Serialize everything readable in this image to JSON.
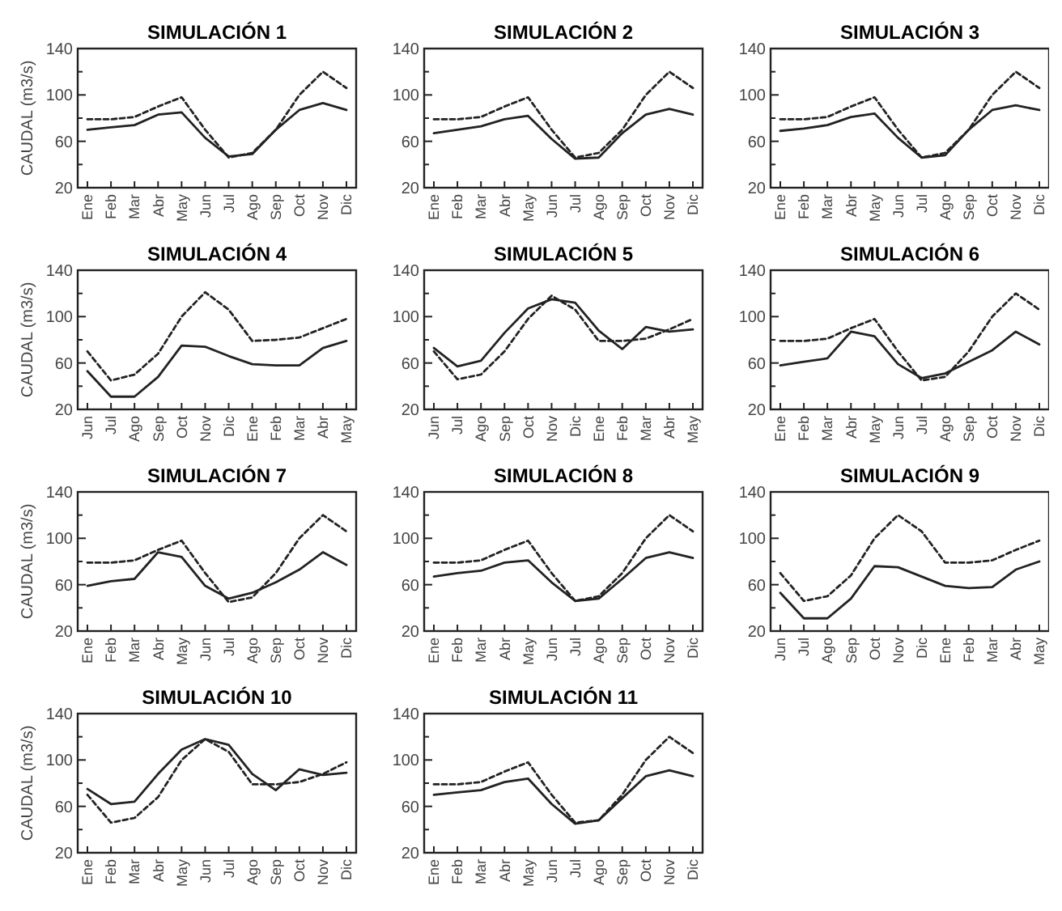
{
  "chart_data": [
    {
      "type": "line",
      "title": "SIMULACIÓN 1",
      "ylabel": "CAUDAL (m3/s)",
      "categories": [
        "Ene",
        "Feb",
        "Mar",
        "Abr",
        "May",
        "Jun",
        "Jul",
        "Ago",
        "Sep",
        "Oct",
        "Nov",
        "Dic"
      ],
      "series": [
        {
          "color": "#222222",
          "line_style": "solid",
          "values": [
            70,
            72,
            74,
            83,
            85,
            63,
            47,
            49,
            70,
            87,
            93,
            87
          ]
        },
        {
          "color": "#222222",
          "line_style": "dashed",
          "values": [
            79,
            79,
            81,
            90,
            98,
            70,
            46,
            50,
            70,
            100,
            120,
            106
          ]
        }
      ],
      "ylim": [
        20,
        140
      ],
      "yticks": [
        20,
        {
          "value": 40,
          "label": null
        },
        60,
        {
          "value": 80,
          "label": null
        },
        100,
        {
          "value": 120,
          "label": null
        },
        140
      ]
    },
    {
      "type": "line",
      "title": "SIMULACIÓN 2",
      "categories": [
        "Ene",
        "Feb",
        "Mar",
        "Abr",
        "May",
        "Jun",
        "Jul",
        "Ago",
        "Sep",
        "Oct",
        "Nov",
        "Dic"
      ],
      "series": [
        {
          "color": "#222222",
          "line_style": "solid",
          "values": [
            67,
            70,
            73,
            79,
            82,
            62,
            45,
            46,
            67,
            83,
            88,
            83
          ]
        },
        {
          "color": "#222222",
          "line_style": "dashed",
          "values": [
            79,
            79,
            81,
            90,
            98,
            70,
            46,
            50,
            70,
            100,
            120,
            106
          ]
        }
      ],
      "ylim": [
        20,
        140
      ],
      "yticks": [
        20,
        {
          "value": 40,
          "label": null
        },
        60,
        {
          "value": 80,
          "label": null
        },
        100,
        {
          "value": 120,
          "label": null
        },
        140
      ]
    },
    {
      "type": "line",
      "title": "SIMULACIÓN 3",
      "categories": [
        "Ene",
        "Feb",
        "Mar",
        "Abr",
        "May",
        "Jun",
        "Jul",
        "Ago",
        "Sep",
        "Oct",
        "Nov",
        "Dic"
      ],
      "series": [
        {
          "color": "#222222",
          "line_style": "solid",
          "values": [
            69,
            71,
            74,
            81,
            84,
            63,
            46,
            48,
            70,
            87,
            91,
            87
          ]
        },
        {
          "color": "#222222",
          "line_style": "dashed",
          "values": [
            79,
            79,
            81,
            90,
            98,
            70,
            46,
            50,
            70,
            100,
            120,
            106
          ]
        }
      ],
      "ylim": [
        20,
        140
      ],
      "yticks": [
        20,
        {
          "value": 40,
          "label": null
        },
        60,
        {
          "value": 80,
          "label": null
        },
        100,
        {
          "value": 120,
          "label": null
        },
        140
      ]
    },
    {
      "type": "line",
      "title": "SIMULACIÓN 4",
      "ylabel": "CAUDAL (m3/s)",
      "categories": [
        "Jun",
        "Jul",
        "Ago",
        "Sep",
        "Oct",
        "Nov",
        "Dic",
        "Ene",
        "Feb",
        "Mar",
        "Abr",
        "May"
      ],
      "series": [
        {
          "color": "#222222",
          "line_style": "solid",
          "values": [
            53,
            31,
            31,
            48,
            75,
            74,
            66,
            59,
            58,
            58,
            73,
            79
          ]
        },
        {
          "color": "#222222",
          "line_style": "dashed",
          "values": [
            70,
            45,
            50,
            68,
            100,
            121,
            106,
            79,
            80,
            82,
            90,
            98
          ]
        }
      ],
      "ylim": [
        20,
        140
      ],
      "yticks": [
        20,
        {
          "value": 40,
          "label": null
        },
        60,
        {
          "value": 80,
          "label": null
        },
        100,
        {
          "value": 120,
          "label": null
        },
        140
      ]
    },
    {
      "type": "line",
      "title": "SIMULACIÓN 5",
      "categories": [
        "Jun",
        "Jul",
        "Ago",
        "Sep",
        "Oct",
        "Nov",
        "Dic",
        "Ene",
        "Feb",
        "Mar",
        "Abr",
        "May"
      ],
      "series": [
        {
          "color": "#222222",
          "line_style": "solid",
          "values": [
            73,
            57,
            62,
            86,
            107,
            115,
            112,
            88,
            72,
            91,
            87,
            89
          ]
        },
        {
          "color": "#222222",
          "line_style": "dashed",
          "values": [
            70,
            46,
            50,
            70,
            98,
            118,
            106,
            79,
            79,
            81,
            89,
            98
          ]
        }
      ],
      "ylim": [
        20,
        140
      ],
      "yticks": [
        20,
        {
          "value": 40,
          "label": null
        },
        60,
        {
          "value": 80,
          "label": null
        },
        100,
        {
          "value": 120,
          "label": null
        },
        140
      ]
    },
    {
      "type": "line",
      "title": "SIMULACIÓN 6",
      "categories": [
        "Ene",
        "Feb",
        "Mar",
        "Abr",
        "May",
        "Jun",
        "Jul",
        "Ago",
        "Sep",
        "Oct",
        "Nov",
        "Dic"
      ],
      "series": [
        {
          "color": "#222222",
          "line_style": "solid",
          "values": [
            58,
            61,
            64,
            87,
            83,
            59,
            47,
            51,
            61,
            71,
            87,
            76
          ]
        },
        {
          "color": "#222222",
          "line_style": "dashed",
          "values": [
            79,
            79,
            81,
            90,
            98,
            70,
            45,
            48,
            70,
            100,
            120,
            106
          ]
        }
      ],
      "ylim": [
        20,
        140
      ],
      "yticks": [
        20,
        {
          "value": 40,
          "label": null
        },
        60,
        {
          "value": 80,
          "label": null
        },
        100,
        {
          "value": 120,
          "label": null
        },
        140
      ]
    },
    {
      "type": "line",
      "title": "SIMULACIÓN 7",
      "ylabel": "CAUDAL (m3/s)",
      "categories": [
        "Ene",
        "Feb",
        "Mar",
        "Abr",
        "May",
        "Jun",
        "Jul",
        "Ago",
        "Sep",
        "Oct",
        "Nov",
        "Dic"
      ],
      "series": [
        {
          "color": "#222222",
          "line_style": "solid",
          "values": [
            59,
            63,
            65,
            88,
            84,
            59,
            48,
            53,
            62,
            73,
            88,
            77
          ]
        },
        {
          "color": "#222222",
          "line_style": "dashed",
          "values": [
            79,
            79,
            81,
            90,
            98,
            70,
            45,
            49,
            70,
            100,
            120,
            106
          ]
        }
      ],
      "ylim": [
        20,
        140
      ],
      "yticks": [
        20,
        {
          "value": 40,
          "label": null
        },
        60,
        {
          "value": 80,
          "label": null
        },
        100,
        {
          "value": 120,
          "label": null
        },
        140
      ]
    },
    {
      "type": "line",
      "title": "SIMULACIÓN 8",
      "categories": [
        "Ene",
        "Feb",
        "Mar",
        "Abr",
        "May",
        "Jun",
        "Jul",
        "Ago",
        "Sep",
        "Oct",
        "Nov",
        "Dic"
      ],
      "series": [
        {
          "color": "#222222",
          "line_style": "solid",
          "values": [
            67,
            70,
            72,
            79,
            81,
            62,
            46,
            48,
            65,
            83,
            88,
            83
          ]
        },
        {
          "color": "#222222",
          "line_style": "dashed",
          "values": [
            79,
            79,
            81,
            90,
            98,
            70,
            46,
            50,
            70,
            100,
            120,
            106
          ]
        }
      ],
      "ylim": [
        20,
        140
      ],
      "yticks": [
        20,
        {
          "value": 40,
          "label": null
        },
        60,
        {
          "value": 80,
          "label": null
        },
        100,
        {
          "value": 120,
          "label": null
        },
        140
      ]
    },
    {
      "type": "line",
      "title": "SIMULACIÓN 9",
      "categories": [
        "Jun",
        "Jul",
        "Ago",
        "Sep",
        "Oct",
        "Nov",
        "Dic",
        "Ene",
        "Feb",
        "Mar",
        "Abr",
        "May"
      ],
      "series": [
        {
          "color": "#222222",
          "line_style": "solid",
          "values": [
            53,
            31,
            31,
            48,
            76,
            75,
            67,
            59,
            57,
            58,
            73,
            80
          ]
        },
        {
          "color": "#222222",
          "line_style": "dashed",
          "values": [
            70,
            46,
            50,
            68,
            100,
            120,
            106,
            79,
            79,
            81,
            90,
            98
          ]
        }
      ],
      "ylim": [
        20,
        140
      ],
      "yticks": [
        20,
        {
          "value": 40,
          "label": null
        },
        60,
        {
          "value": 80,
          "label": null
        },
        100,
        {
          "value": 120,
          "label": null
        },
        140
      ]
    },
    {
      "type": "line",
      "title": "SIMULACIÓN 10",
      "ylabel": "CAUDAL (m3/s)",
      "categories": [
        "Ene",
        "Feb",
        "Mar",
        "Abr",
        "May",
        "Jun",
        "Jul",
        "Ago",
        "Sep",
        "Oct",
        "Nov",
        "Dic"
      ],
      "series": [
        {
          "color": "#222222",
          "line_style": "solid",
          "values": [
            75,
            62,
            64,
            88,
            109,
            118,
            113,
            88,
            74,
            92,
            87,
            89
          ]
        },
        {
          "color": "#222222",
          "line_style": "dashed",
          "values": [
            70,
            46,
            50,
            68,
            100,
            118,
            107,
            79,
            79,
            81,
            88,
            98
          ]
        }
      ],
      "ylim": [
        20,
        140
      ],
      "yticks": [
        20,
        {
          "value": 40,
          "label": null
        },
        60,
        {
          "value": 80,
          "label": null
        },
        100,
        {
          "value": 120,
          "label": null
        },
        140
      ]
    },
    {
      "type": "line",
      "title": "SIMULACIÓN 11",
      "categories": [
        "Ene",
        "Feb",
        "Mar",
        "Abr",
        "May",
        "Jun",
        "Jul",
        "Ago",
        "Sep",
        "Oct",
        "Nov",
        "Dic"
      ],
      "series": [
        {
          "color": "#222222",
          "line_style": "solid",
          "values": [
            70,
            72,
            74,
            81,
            84,
            62,
            45,
            48,
            67,
            86,
            91,
            86
          ]
        },
        {
          "color": "#222222",
          "line_style": "dashed",
          "values": [
            79,
            79,
            81,
            90,
            98,
            70,
            46,
            48,
            70,
            100,
            120,
            106
          ]
        }
      ],
      "ylim": [
        20,
        140
      ],
      "yticks": [
        20,
        {
          "value": 40,
          "label": null
        },
        60,
        {
          "value": 80,
          "label": null
        },
        100,
        {
          "value": 120,
          "label": null
        },
        140
      ]
    }
  ]
}
